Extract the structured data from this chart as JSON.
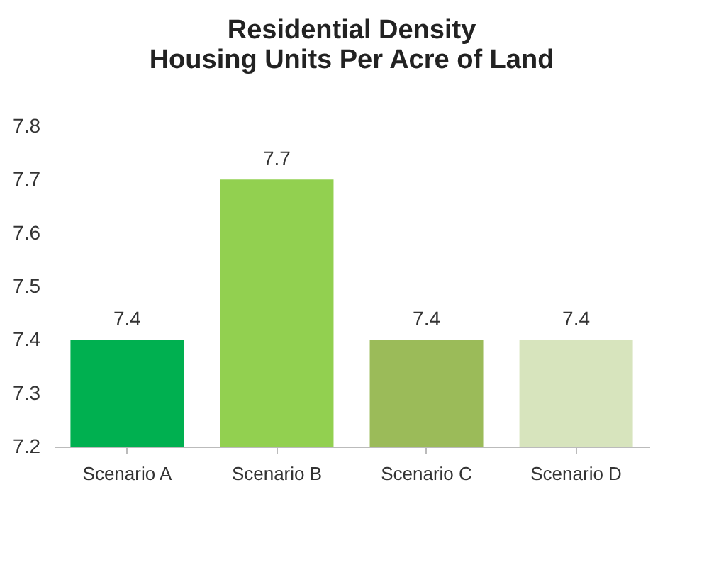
{
  "chart_data": {
    "type": "bar",
    "title": [
      "Residential Density",
      "Housing Units Per Acre of Land"
    ],
    "categories": [
      "Scenario A",
      "Scenario B",
      "Scenario C",
      "Scenario D"
    ],
    "values": [
      7.4,
      7.7,
      7.4,
      7.4
    ],
    "colors": [
      "#00b050",
      "#92d050",
      "#9bbb59",
      "#d7e4bd"
    ],
    "ylim": [
      7.2,
      7.8
    ],
    "yticks": [
      7.2,
      7.3,
      7.4,
      7.5,
      7.6,
      7.7,
      7.8
    ],
    "data_labels": true,
    "grid": false
  }
}
